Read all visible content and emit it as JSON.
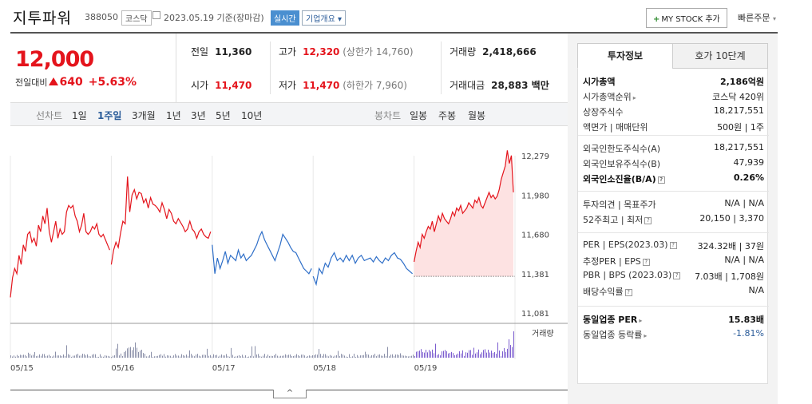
{
  "header": {
    "name": "지투파워",
    "code": "388050",
    "market": "코스닥",
    "date": "2023.05.19",
    "basis": "기준(장마감)",
    "realtime": "실시간",
    "overview": "기업개요",
    "mystock_label": "MY STOCK 추가",
    "quick_order": "빠른주문"
  },
  "price": {
    "current": "12,000",
    "change_label": "전일대비",
    "change_value": "640",
    "change_pct": "+5.63%"
  },
  "quote": {
    "prev_close_label": "전일",
    "prev_close": "11,360",
    "high_label": "고가",
    "high": "12,320",
    "upper_limit": "(상한가 14,760)",
    "volume_label": "거래량",
    "volume": "2,418,666",
    "open_label": "시가",
    "open": "11,470",
    "low_label": "저가",
    "low": "11,470",
    "lower_limit": "(하한가 7,960)",
    "amount_label": "거래대금",
    "amount": "28,883 백만"
  },
  "periodbar": {
    "line_chart_label": "선차트",
    "periods": [
      "1일",
      "1주일",
      "3개월",
      "1년",
      "3년",
      "5년",
      "10년"
    ],
    "active_period": "1주일",
    "candle_chart_label": "봉차트",
    "candle_periods": [
      "일봉",
      "주봉",
      "월봉"
    ]
  },
  "chart_data": {
    "type": "line",
    "price_ticks": [
      "12,279",
      "11,980",
      "11,680",
      "11,381",
      "11,081"
    ],
    "x_labels": [
      "05/15",
      "05/16",
      "05/17",
      "05/18",
      "05/19"
    ],
    "volume_legend": "거래량",
    "prev_close_line": 11360,
    "ylim": [
      11081,
      12279
    ],
    "colors": {
      "up": "#e4141c",
      "down": "#2f6fc8",
      "fill": "#fde2e2",
      "volume": "#8a8fa8",
      "volume_hi": "#7b5ccf"
    },
    "series": [
      {
        "values": [
          11200,
          11350,
          11420,
          11380,
          11520,
          11450,
          11600,
          11550,
          11680,
          11700,
          11620,
          11650,
          11590,
          11750,
          11700,
          11820,
          11760,
          11880,
          11700,
          11620,
          11700,
          11780,
          11650,
          11720,
          11680,
          11700,
          11850,
          11900,
          11880,
          11900,
          11820,
          11780,
          11700,
          11750,
          11840,
          11700,
          11680,
          11700,
          11740,
          11720,
          11760,
          11680,
          11660,
          11680,
          11640,
          11600,
          11560
        ]
      },
      {
        "values": [
          11450,
          11560,
          11620,
          11580,
          11690,
          11780,
          11760,
          12120,
          11850,
          11980,
          12020,
          11950,
          12000,
          11990,
          11920,
          11950,
          11880,
          11960,
          11910,
          11900,
          11880,
          11850,
          11920,
          11870,
          11800,
          11870,
          11840,
          11780,
          11760,
          11800,
          11770,
          11740,
          11700,
          11720,
          11780,
          11720,
          11700,
          11650,
          11700,
          11720,
          11680,
          11660,
          11650,
          11700
        ]
      },
      {
        "values": [
          11600,
          11380,
          11500,
          11420,
          11480,
          11550,
          11460,
          11520,
          11500,
          11480,
          11560,
          11500,
          11530,
          11480,
          11500,
          11520,
          11560,
          11600,
          11660,
          11700,
          11640,
          11600,
          11560,
          11520,
          11480,
          11540,
          11600,
          11680,
          11650,
          11620,
          11580,
          11550,
          11540,
          11500,
          11460,
          11420,
          11400,
          11380,
          11420
        ]
      },
      {
        "values": [
          11360,
          11300,
          11420,
          11380,
          11460,
          11430,
          11500,
          11540,
          11480,
          11500,
          11470,
          11520,
          11480,
          11520,
          11460,
          11500,
          11520,
          11480,
          11490,
          11500,
          11470,
          11510,
          11480,
          11460,
          11500,
          11480,
          11520,
          11540,
          11500,
          11490,
          11460,
          11420,
          11400,
          11380
        ]
      },
      {
        "values": [
          11470,
          11550,
          11620,
          11580,
          11680,
          11650,
          11700,
          11740,
          11720,
          11780,
          11700,
          11760,
          11820,
          11780,
          11840,
          11800,
          11780,
          11760,
          11800,
          11850,
          11820,
          11880,
          11860,
          11900,
          11840,
          11860,
          11880,
          11920,
          11900,
          11880,
          11940,
          11920,
          11960,
          11900,
          11880,
          11920,
          11960,
          12000,
          11960,
          11980,
          11950,
          11970,
          12020,
          12100,
          12150,
          12200,
          12320,
          12220,
          12280,
          12000
        ]
      }
    ]
  },
  "tabs": [
    "투자정보",
    "호가 10단계"
  ],
  "info": {
    "s1": [
      {
        "k": "시가총액",
        "v": "2,186억원",
        "bold": true
      },
      {
        "k": "시가총액순위",
        "v": "코스닥 420위",
        "arrow": true
      },
      {
        "k": "상장주식수",
        "v": "18,217,551"
      },
      {
        "k": "액면가 | 매매단위",
        "v": "500원 | 1주"
      }
    ],
    "s2": [
      {
        "k": "외국인한도주식수(A)",
        "v": "18,217,551"
      },
      {
        "k": "외국인보유주식수(B)",
        "v": "47,939"
      },
      {
        "k": "외국인소진율(B/A)",
        "v": "0.26%",
        "bold": true,
        "help": true
      }
    ],
    "s3": [
      {
        "k": "투자의견 | 목표주가",
        "v": "N/A | N/A"
      },
      {
        "k": "52주최고 | 최저",
        "v": "20,150 | 3,370",
        "help": true
      }
    ],
    "s4": [
      {
        "k": "PER | EPS(2023.03)",
        "v": "324.32배 | 37원",
        "help": true
      },
      {
        "k": "추정PER | EPS",
        "v": "N/A | N/A",
        "help": true
      },
      {
        "k": "PBR | BPS (2023.03)",
        "v": "7.03배 | 1,708원",
        "help": true
      },
      {
        "k": "배당수익률",
        "v": "N/A",
        "help": true
      }
    ],
    "s5": [
      {
        "k": "동일업종 PER",
        "v": "15.83배",
        "bold": true,
        "arrow": true
      },
      {
        "k": "동일업종 등락률",
        "v": "-1.81%",
        "blue": true,
        "arrow": true
      }
    ]
  }
}
